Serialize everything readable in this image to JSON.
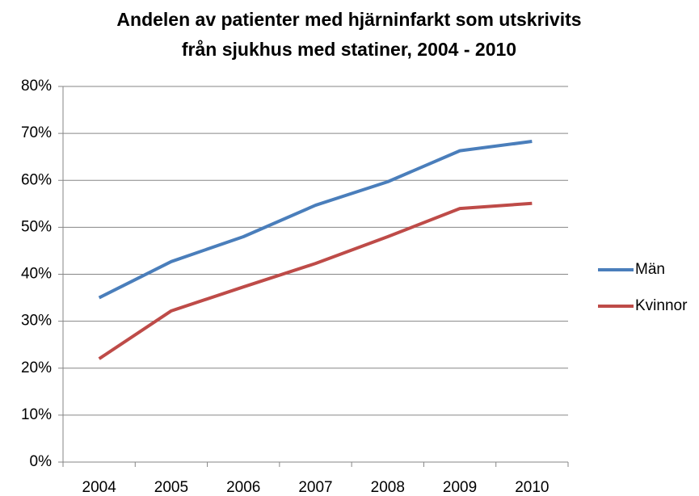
{
  "chart_data": {
    "type": "line",
    "title": [
      "Andelen av patienter med hjärninfarkt som utskrivits",
      "från sjukhus med statiner, 2004 - 2010"
    ],
    "categories": [
      "2004",
      "2005",
      "2006",
      "2007",
      "2008",
      "2009",
      "2010"
    ],
    "series": [
      {
        "name": "Män",
        "color": "#4a7ebb",
        "values": [
          35.0,
          42.7,
          48.0,
          54.7,
          59.7,
          66.3,
          68.3
        ]
      },
      {
        "name": "Kvinnor",
        "color": "#be4b48",
        "values": [
          22.0,
          32.2,
          37.3,
          42.3,
          48.0,
          54.0,
          55.1
        ]
      }
    ],
    "ylim": [
      0,
      80
    ],
    "yticks": [
      {
        "value": 0,
        "label": "0%"
      },
      {
        "value": 10,
        "label": "10%"
      },
      {
        "value": 20,
        "label": "20%"
      },
      {
        "value": 30,
        "label": "30%"
      },
      {
        "value": 40,
        "label": "40%"
      },
      {
        "value": 50,
        "label": "50%"
      },
      {
        "value": 60,
        "label": "60%"
      },
      {
        "value": 70,
        "label": "70%"
      },
      {
        "value": 80,
        "label": "80%"
      }
    ],
    "grid": true,
    "legend": "right"
  }
}
